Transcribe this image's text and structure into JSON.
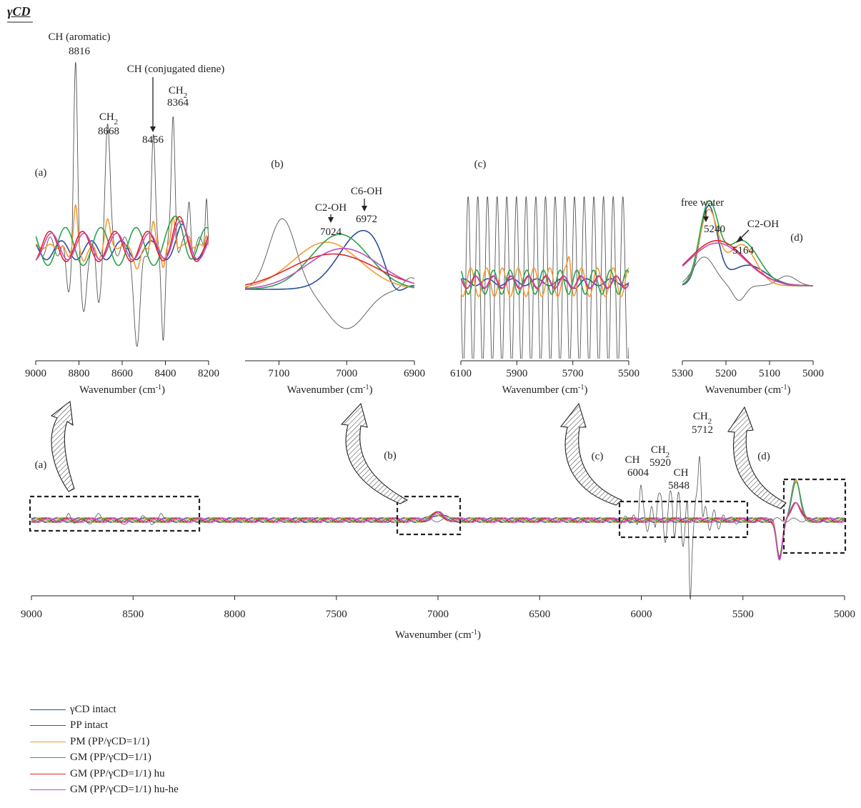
{
  "figure": {
    "title": "γCD",
    "xlabel": "Wavenumber (cm",
    "xlabel_sup": "-1",
    "xlabel_close": ")"
  },
  "colors": {
    "gcd_intact": "#2c4f9b",
    "pp_intact": "#555555",
    "pm": "#f39c34",
    "gm": "#2aa34a",
    "gm_hu": "#e0252a",
    "gm_huhe": "#c04dc0"
  },
  "legend": [
    {
      "key": "gcd_intact",
      "label": "γCD intact"
    },
    {
      "key": "pp_intact",
      "label": "PP intact"
    },
    {
      "key": "pm",
      "label": "PM (PP/γCD=1/1)"
    },
    {
      "key": "gm",
      "label": "GM (PP/γCD=1/1)"
    },
    {
      "key": "gm_hu",
      "label": "GM (PP/γCD=1/1) hu"
    },
    {
      "key": "gm_huhe",
      "label": "GM (PP/γCD=1/1) hu-he"
    }
  ],
  "chart_data": [
    {
      "id": "main",
      "type": "line",
      "x_range": [
        9000,
        5000
      ],
      "x_ticks": [
        9000,
        8500,
        8000,
        7500,
        7000,
        6500,
        6000,
        5500,
        5000
      ],
      "xlabel": "Wavenumber (cm-1)",
      "region_labels": [
        "(a)",
        "(b)",
        "(c)",
        "(d)"
      ],
      "annotations": [
        {
          "label": "CH",
          "value": "6004"
        },
        {
          "label": "CH2",
          "value": "5920"
        },
        {
          "label": "CH",
          "value": "5848"
        },
        {
          "label": "CH2",
          "value": "5712"
        }
      ]
    },
    {
      "id": "a",
      "type": "line",
      "panel_label": "(a)",
      "x_range": [
        9000,
        8200
      ],
      "x_ticks": [
        9000,
        8800,
        8600,
        8400,
        8200
      ],
      "xlabel": "Wavenumber (cm-1)",
      "annotations": [
        {
          "label": "CH (aromatic)",
          "value": "8816"
        },
        {
          "label": "CH2",
          "value": "8668"
        },
        {
          "label": "CH (conjugated diene)",
          "value": "8456"
        },
        {
          "label": "CH2",
          "value": "8364"
        }
      ]
    },
    {
      "id": "b",
      "type": "line",
      "panel_label": "(b)",
      "x_range": [
        7150,
        6900
      ],
      "x_ticks": [
        7100,
        7000,
        6900
      ],
      "xlabel": "Wavenumber (cm-1)",
      "annotations": [
        {
          "label": "C2-OH",
          "value": "7024"
        },
        {
          "label": "C6-OH",
          "value": "6972"
        }
      ]
    },
    {
      "id": "c",
      "type": "line",
      "panel_label": "(c)",
      "x_range": [
        6100,
        5500
      ],
      "x_ticks": [
        6100,
        5900,
        5700,
        5500
      ],
      "xlabel": "Wavenumber (cm-1)",
      "annotations": []
    },
    {
      "id": "d",
      "type": "line",
      "panel_label": "(d)",
      "x_range": [
        5300,
        5000
      ],
      "x_ticks": [
        5300,
        5200,
        5100,
        5000
      ],
      "xlabel": "Wavenumber (cm-1)",
      "annotations": [
        {
          "label": "free water",
          "value": "5240"
        },
        {
          "label": "C2-OH",
          "value": "5164"
        }
      ]
    }
  ]
}
